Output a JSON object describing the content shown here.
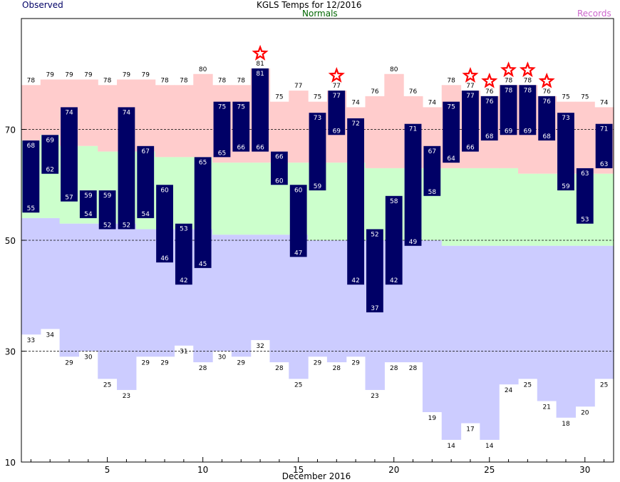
{
  "header": {
    "left": "Observed",
    "center_top": "KGLS Temps for 12/2016",
    "center_bottom": "Normals",
    "right": "Records"
  },
  "colors": {
    "observed": "#000066",
    "observed_text": "#ffffff",
    "normals": "#006600",
    "records": "#cc66cc",
    "record_high_band": "#ffcccc",
    "normal_band": "#ccffcc",
    "record_low_band": "#ccccff",
    "record_star": "#ff0000",
    "header_observed": "#000066"
  },
  "chart_data": {
    "type": "bar",
    "title": "KGLS Temps for 12/2016",
    "xlabel": "December 2016",
    "ylabel": "",
    "xlim": [
      1,
      31
    ],
    "ylim": [
      10,
      90
    ],
    "x_ticks": [
      5,
      10,
      15,
      20,
      25,
      30
    ],
    "y_ticks": [
      10,
      30,
      50,
      70
    ],
    "gridlines_y": [
      30,
      50,
      70
    ],
    "days": [
      1,
      2,
      3,
      4,
      5,
      6,
      7,
      8,
      9,
      10,
      11,
      12,
      13,
      14,
      15,
      16,
      17,
      18,
      19,
      20,
      21,
      22,
      23,
      24,
      25,
      26,
      27,
      28,
      29,
      30,
      31
    ],
    "observed_high": [
      68,
      69,
      74,
      59,
      59,
      74,
      67,
      60,
      53,
      65,
      75,
      75,
      81,
      66,
      60,
      73,
      77,
      72,
      52,
      58,
      71,
      67,
      75,
      77,
      76,
      78,
      78,
      76,
      73,
      63,
      71
    ],
    "observed_low": [
      55,
      62,
      57,
      54,
      52,
      52,
      54,
      46,
      42,
      45,
      65,
      66,
      66,
      60,
      47,
      59,
      69,
      42,
      37,
      42,
      49,
      58,
      64,
      66,
      68,
      69,
      69,
      68,
      59,
      53,
      63
    ],
    "record_high": [
      78,
      79,
      79,
      79,
      78,
      79,
      79,
      78,
      78,
      80,
      78,
      78,
      81,
      75,
      77,
      75,
      77,
      74,
      76,
      80,
      76,
      74,
      78,
      77,
      76,
      78,
      78,
      76,
      75,
      75,
      74
    ],
    "record_low": [
      33,
      34,
      29,
      30,
      25,
      23,
      29,
      29,
      31,
      28,
      30,
      29,
      32,
      28,
      25,
      29,
      28,
      29,
      23,
      28,
      28,
      19,
      14,
      17,
      14,
      24,
      25,
      21,
      18,
      20,
      25
    ],
    "normal_high": [
      68,
      69,
      67,
      67,
      66,
      66,
      66,
      65,
      65,
      65,
      64,
      64,
      64,
      64,
      64,
      64,
      64,
      64,
      63,
      63,
      63,
      63,
      63,
      63,
      63,
      63,
      62,
      62,
      62,
      62,
      62
    ],
    "normal_low": [
      54,
      54,
      53,
      53,
      53,
      53,
      52,
      52,
      52,
      52,
      51,
      51,
      51,
      51,
      51,
      50,
      50,
      50,
      50,
      50,
      50,
      50,
      49,
      49,
      49,
      49,
      49,
      49,
      49,
      49,
      49
    ],
    "record_set_days": [
      13,
      17,
      24,
      25,
      26,
      27,
      28
    ]
  }
}
